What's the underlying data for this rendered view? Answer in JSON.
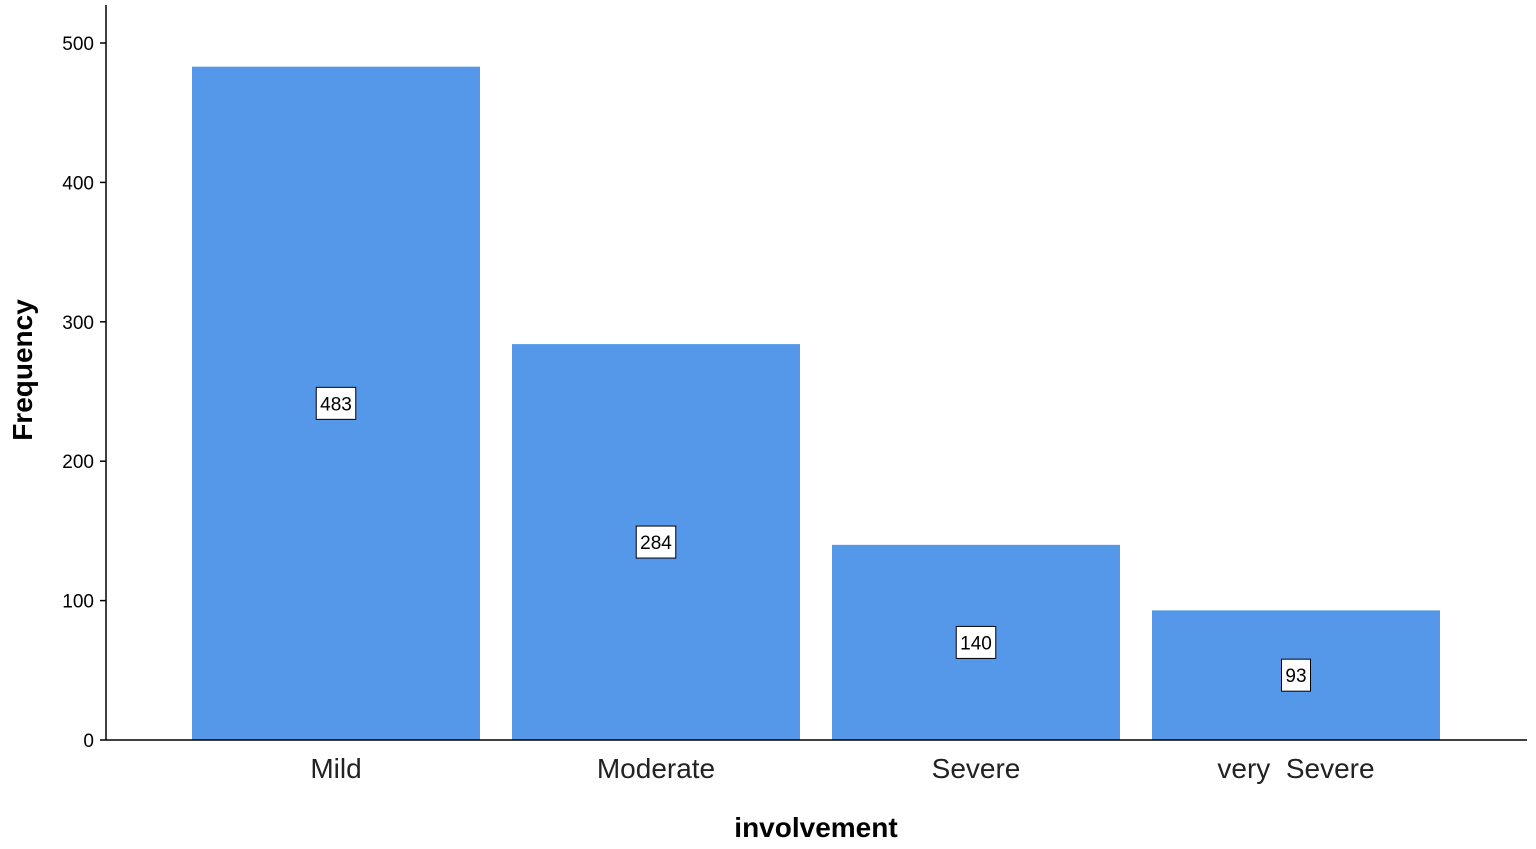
{
  "chart_data": {
    "type": "bar",
    "categories": [
      "Mild",
      "Moderate",
      "Severe",
      "very  Severe"
    ],
    "values": [
      483,
      284,
      140,
      93
    ],
    "data_labels": [
      "483",
      "284",
      "140",
      "93"
    ],
    "title": "",
    "xlabel": "involvement",
    "ylabel": "Frequency",
    "ylim": [
      0,
      500
    ],
    "yticks": [
      0,
      100,
      200,
      300,
      400,
      500
    ],
    "ytick_labels": [
      "0",
      "100",
      "200",
      "300",
      "400",
      "500"
    ],
    "grid": false,
    "legend": "none",
    "bar_color": "#5597E8",
    "axis_color": "#000000"
  }
}
